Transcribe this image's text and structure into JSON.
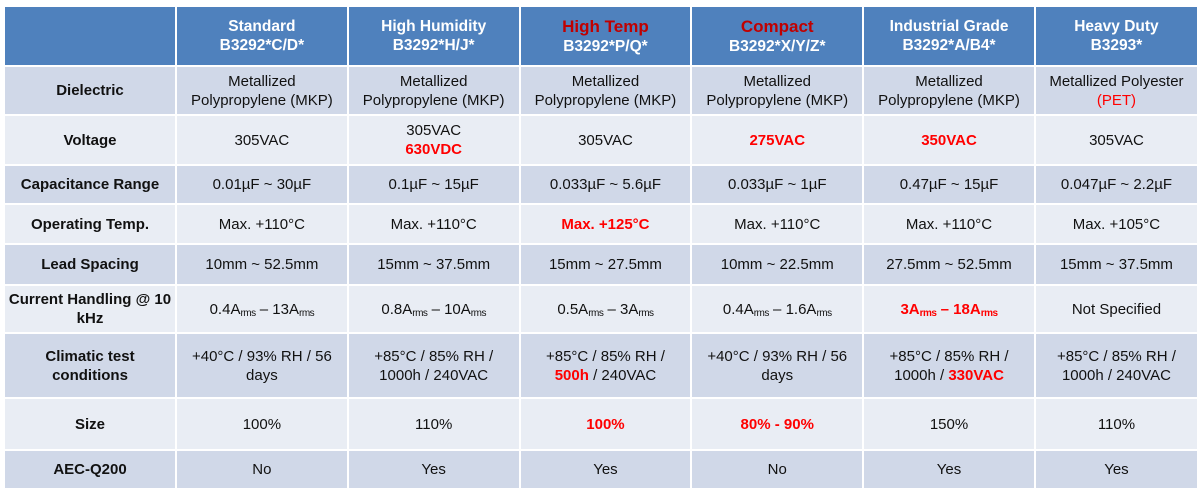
{
  "colors": {
    "header_bg": "#4f81bd",
    "row_dark": "#d0d8e8",
    "row_light": "#e9edf4",
    "highlight_red": "#ff0000",
    "header_red": "#c00000"
  },
  "columns": [
    {
      "name": "Standard",
      "part": "B3292*C/D*",
      "highlight": false
    },
    {
      "name": "High Humidity",
      "part": "B3292*H/J*",
      "highlight": false
    },
    {
      "name": "High Temp",
      "part": "B3292*P/Q*",
      "highlight": true
    },
    {
      "name": "Compact",
      "part": "B3292*X/Y/Z*",
      "highlight": true
    },
    {
      "name": "Industrial Grade",
      "part": "B3292*A/B4*",
      "highlight": false
    },
    {
      "name": "Heavy Duty",
      "part": "B3293*",
      "highlight": false
    }
  ],
  "rows": [
    {
      "label": "Dielectric",
      "cells": [
        [
          {
            "t": "Metallized"
          },
          {
            "br": 1
          },
          {
            "t": "Polypropylene (MKP)"
          }
        ],
        [
          {
            "t": "Metallized"
          },
          {
            "br": 1
          },
          {
            "t": "Polypropylene (MKP)"
          }
        ],
        [
          {
            "t": "Metallized"
          },
          {
            "br": 1
          },
          {
            "t": "Polypropylene (MKP)"
          }
        ],
        [
          {
            "t": "Metallized"
          },
          {
            "br": 1
          },
          {
            "t": "Polypropylene (MKP)"
          }
        ],
        [
          {
            "t": "Metallized"
          },
          {
            "br": 1
          },
          {
            "t": "Polypropylene (MKP)"
          }
        ],
        [
          {
            "t": "Metallized Polyester"
          },
          {
            "br": 1
          },
          {
            "t": "(PET)",
            "red": 1
          }
        ]
      ]
    },
    {
      "label": "Voltage",
      "cells": [
        [
          {
            "t": "305VAC"
          }
        ],
        [
          {
            "t": "305VAC"
          },
          {
            "br": 1
          },
          {
            "t": "630VDC",
            "red": 1,
            "b": 1
          }
        ],
        [
          {
            "t": "305VAC"
          }
        ],
        [
          {
            "t": "275VAC",
            "red": 1,
            "b": 1
          }
        ],
        [
          {
            "t": "350VAC",
            "red": 1,
            "b": 1
          }
        ],
        [
          {
            "t": "305VAC"
          }
        ]
      ]
    },
    {
      "label": "Capacitance Range",
      "cells": [
        [
          {
            "t": "0.01µF ~ 30µF"
          }
        ],
        [
          {
            "t": "0.1µF ~ 15µF"
          }
        ],
        [
          {
            "t": "0.033µF ~ 5.6µF"
          }
        ],
        [
          {
            "t": "0.033µF ~ 1µF"
          }
        ],
        [
          {
            "t": "0.47µF ~ 15µF"
          }
        ],
        [
          {
            "t": "0.047µF ~ 2.2µF"
          }
        ]
      ]
    },
    {
      "label": "Operating Temp.",
      "cells": [
        [
          {
            "t": "Max. +110°C"
          }
        ],
        [
          {
            "t": "Max. +110°C"
          }
        ],
        [
          {
            "t": "Max. +125°C",
            "red": 1,
            "b": 1
          }
        ],
        [
          {
            "t": "Max. +110°C"
          }
        ],
        [
          {
            "t": "Max. +110°C"
          }
        ],
        [
          {
            "t": "Max. +105°C"
          }
        ]
      ]
    },
    {
      "label": "Lead Spacing",
      "cells": [
        [
          {
            "t": "10mm ~ 52.5mm"
          }
        ],
        [
          {
            "t": "15mm ~ 37.5mm"
          }
        ],
        [
          {
            "t": "15mm ~ 27.5mm"
          }
        ],
        [
          {
            "t": "10mm ~ 22.5mm"
          }
        ],
        [
          {
            "t": "27.5mm ~ 52.5mm"
          }
        ],
        [
          {
            "t": "15mm ~ 37.5mm"
          }
        ]
      ]
    },
    {
      "label": "Current Handling @ 10 kHz",
      "cells": [
        [
          {
            "t": "0.4A"
          },
          {
            "t": "rms",
            "sub": 1
          },
          {
            "t": " – 13A"
          },
          {
            "t": "rms",
            "sub": 1
          }
        ],
        [
          {
            "t": "0.8A"
          },
          {
            "t": "rms",
            "sub": 1
          },
          {
            "t": " – 10A"
          },
          {
            "t": "rms",
            "sub": 1
          }
        ],
        [
          {
            "t": "0.5A"
          },
          {
            "t": "rms",
            "sub": 1
          },
          {
            "t": " – 3A"
          },
          {
            "t": "rms",
            "sub": 1
          }
        ],
        [
          {
            "t": "0.4A"
          },
          {
            "t": "rms",
            "sub": 1
          },
          {
            "t": " – 1.6A"
          },
          {
            "t": "rms",
            "sub": 1
          }
        ],
        [
          {
            "t": "3A",
            "red": 1,
            "b": 1
          },
          {
            "t": "rms",
            "sub": 1,
            "red": 1,
            "b": 1
          },
          {
            "t": " – 18A",
            "red": 1,
            "b": 1
          },
          {
            "t": "rms",
            "sub": 1,
            "red": 1,
            "b": 1
          }
        ],
        [
          {
            "t": "Not Specified"
          }
        ]
      ]
    },
    {
      "label": "Climatic test conditions",
      "cells": [
        [
          {
            "t": "+40°C / 93% RH / 56"
          },
          {
            "br": 1
          },
          {
            "t": "days"
          }
        ],
        [
          {
            "t": "+85°C / 85% RH /"
          },
          {
            "br": 1
          },
          {
            "t": "1000h / 240VAC"
          }
        ],
        [
          {
            "t": "+85°C / 85% RH /"
          },
          {
            "br": 1
          },
          {
            "t": "500h",
            "red": 1,
            "b": 1
          },
          {
            "t": " / 240VAC"
          }
        ],
        [
          {
            "t": "+40°C / 93% RH / 56"
          },
          {
            "br": 1
          },
          {
            "t": "days"
          }
        ],
        [
          {
            "t": "+85°C / 85% RH /"
          },
          {
            "br": 1
          },
          {
            "t": "1000h / "
          },
          {
            "t": "330VAC",
            "red": 1,
            "b": 1
          }
        ],
        [
          {
            "t": "+85°C / 85% RH /"
          },
          {
            "br": 1
          },
          {
            "t": "1000h / 240VAC"
          }
        ]
      ]
    },
    {
      "label": "Size",
      "cells": [
        [
          {
            "t": "100%"
          }
        ],
        [
          {
            "t": "110%"
          }
        ],
        [
          {
            "t": "100%",
            "red": 1,
            "b": 1
          }
        ],
        [
          {
            "t": "80% - 90%",
            "red": 1,
            "b": 1
          }
        ],
        [
          {
            "t": "150%"
          }
        ],
        [
          {
            "t": "110%"
          }
        ]
      ]
    },
    {
      "label": "AEC-Q200",
      "cells": [
        [
          {
            "t": "No"
          }
        ],
        [
          {
            "t": "Yes"
          }
        ],
        [
          {
            "t": "Yes"
          }
        ],
        [
          {
            "t": "No"
          }
        ],
        [
          {
            "t": "Yes"
          }
        ],
        [
          {
            "t": "Yes"
          }
        ]
      ]
    }
  ]
}
